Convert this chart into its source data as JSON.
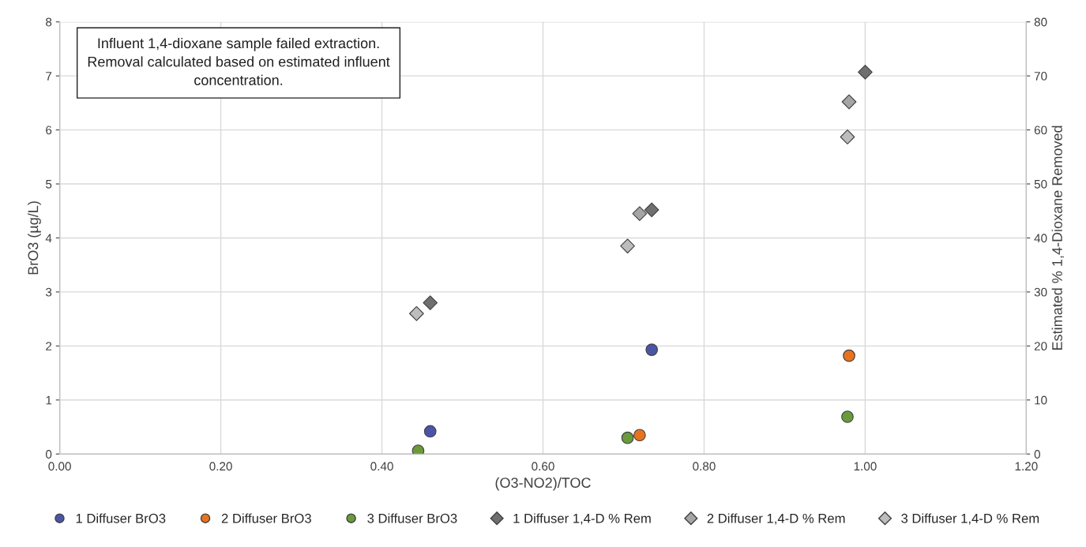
{
  "chart_data": {
    "type": "scatter",
    "xlabel": "(O3-NO2)/TOC",
    "ylabel": "BrO3 (µg/L)",
    "y2label": "Estimated % 1,4-Dioxane Removed",
    "xlim": [
      0,
      1.2
    ],
    "xticks": [
      {
        "value": 0,
        "label": "0.00"
      },
      {
        "value": 0.2,
        "label": "0.20"
      },
      {
        "value": 0.4,
        "label": "0.40"
      },
      {
        "value": 0.6,
        "label": "0.60"
      },
      {
        "value": 0.8,
        "label": "0.80"
      },
      {
        "value": 1.0,
        "label": "1.00"
      },
      {
        "value": 1.2,
        "label": "1.20"
      }
    ],
    "ylim": [
      0,
      8
    ],
    "yticks": [
      0,
      1,
      2,
      3,
      4,
      5,
      6,
      7,
      8
    ],
    "y2lim": [
      0,
      80
    ],
    "y2ticks": [
      0,
      10,
      20,
      30,
      40,
      50,
      60,
      70,
      80
    ],
    "grid": true,
    "legend": "bottom",
    "annotations": [
      "Influent 1,4-dioxane sample failed extraction.\nRemoval calculated based on estimated influent\nconcentration."
    ],
    "series": [
      {
        "name": "1 Diffuser BrO3",
        "color": "#4b55a8",
        "marker": "circle",
        "x": [
          0.46,
          0.735
        ],
        "values": [
          0.42,
          1.93
        ]
      },
      {
        "name": "2 Diffuser BrO3",
        "color": "#e8731e",
        "marker": "circle",
        "x": [
          0.72,
          0.98
        ],
        "values": [
          0.35,
          1.82
        ]
      },
      {
        "name": "3 Diffuser BrO3",
        "color": "#6a9a3a",
        "marker": "circle",
        "x": [
          0.445,
          0.705,
          0.978
        ],
        "values": [
          0.06,
          0.3,
          0.69
        ]
      },
      {
        "name": "1 Diffuser 1,4-D % Rem",
        "color": "#6f6f6f",
        "marker": "diamond",
        "axis": "y2",
        "x": [
          0.46,
          0.735,
          1.0
        ],
        "values": [
          28,
          45.2,
          70.7
        ]
      },
      {
        "name": "2 Diffuser 1,4-D % Rem",
        "color": "#a5a5a5",
        "marker": "diamond",
        "axis": "y2",
        "x": [
          0.72,
          0.98
        ],
        "values": [
          44.5,
          65.2
        ]
      },
      {
        "name": "3 Diffuser 1,4-D % Rem",
        "color": "#bdbdbd",
        "marker": "diamond",
        "axis": "y2",
        "x": [
          0.443,
          0.705,
          0.978
        ],
        "values": [
          26,
          38.5,
          58.7
        ]
      }
    ]
  }
}
